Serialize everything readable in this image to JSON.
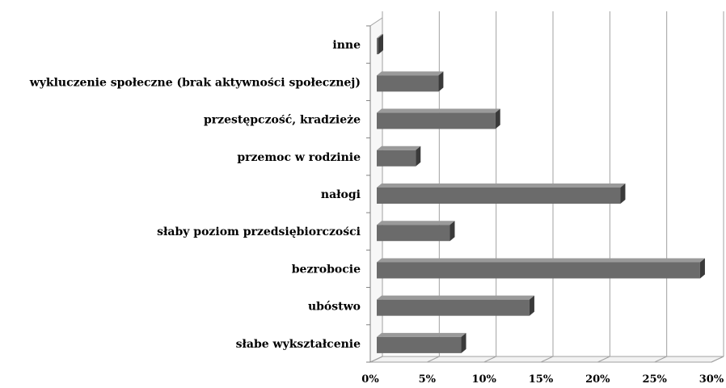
{
  "chart_data": {
    "type": "bar",
    "orientation": "horizontal",
    "style": "3d",
    "categories": [
      "inne",
      "wykluczenie społeczne (brak aktywności społecznej)",
      "przestępczość, kradzieże",
      "przemoc w rodzinie",
      "nałogi",
      "słaby poziom przedsiębiorczości",
      "bezrobocie",
      "ubóstwo",
      "słabe wykształcenie"
    ],
    "values": [
      0.1,
      6,
      11,
      4,
      22,
      7,
      29,
      14,
      8
    ],
    "xlim": [
      0,
      30
    ],
    "xticks": [
      "0%",
      "5%",
      "10%",
      "15%",
      "20%",
      "25%",
      "30%"
    ],
    "unit": "%",
    "grid": true,
    "legend": "none",
    "colors": {
      "bar": "#6b6b6b",
      "bar_top": "#9a9a9a",
      "bar_side": "#3a3a3a",
      "grid": "#a0a0a0"
    }
  }
}
